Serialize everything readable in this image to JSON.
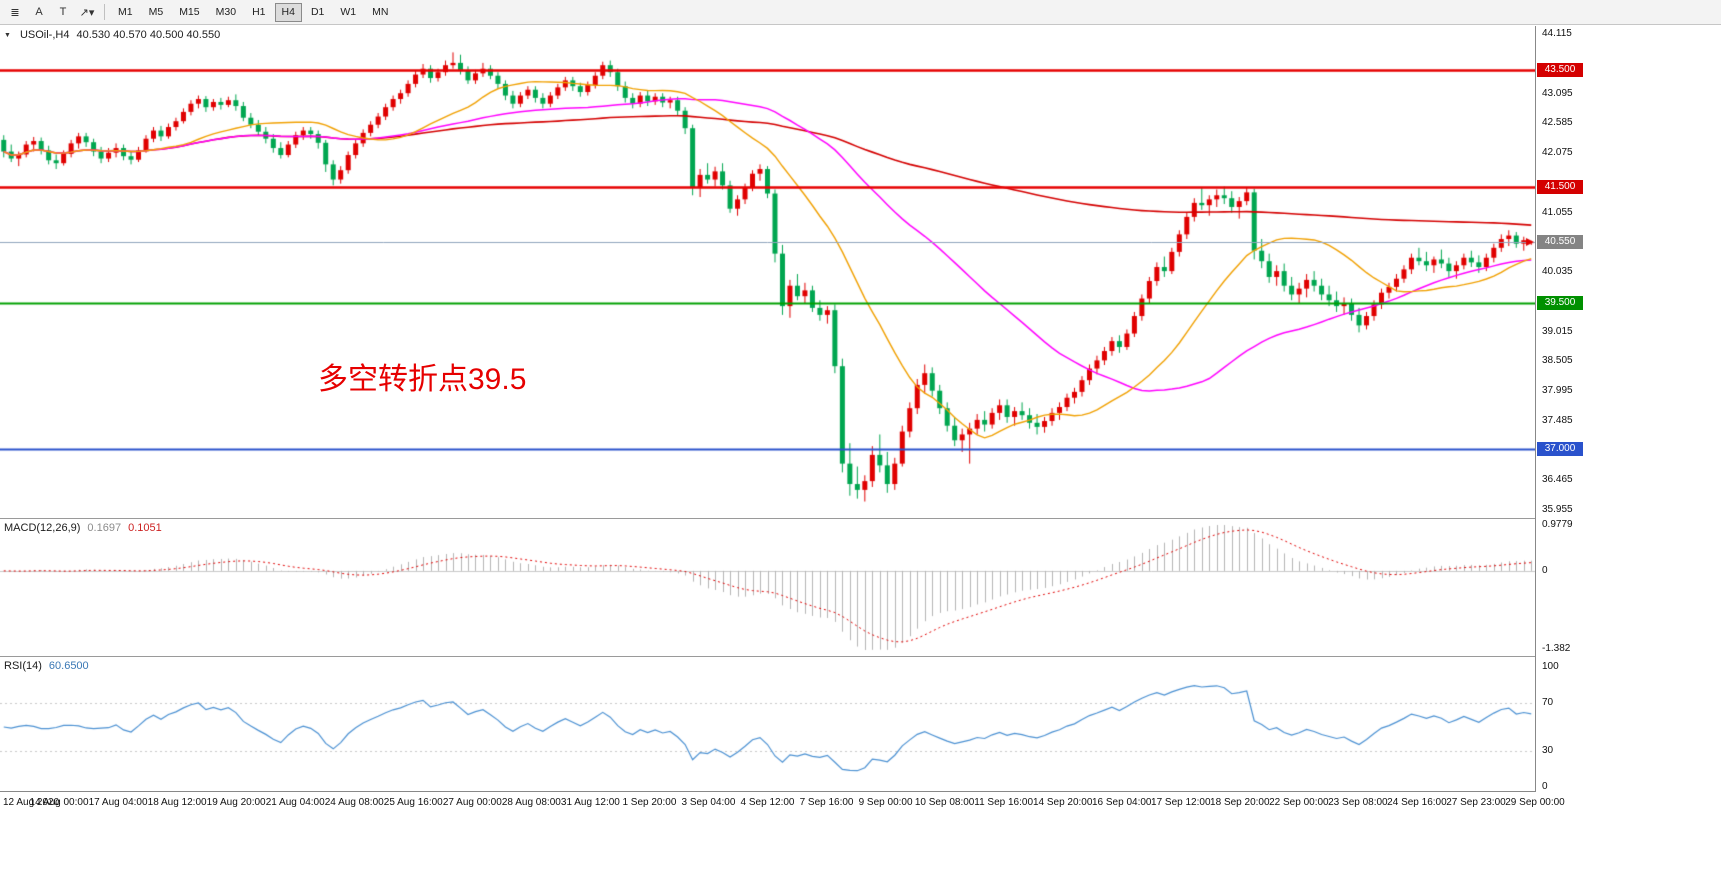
{
  "toolbar": {
    "tools": [
      {
        "name": "chart-windows-tool",
        "glyph": "≣"
      },
      {
        "name": "text-annotation-tool",
        "glyph": "A"
      },
      {
        "name": "text-label-tool",
        "glyph": "T"
      },
      {
        "name": "drawing-tools",
        "glyph": "↗▾"
      }
    ],
    "timeframes": [
      "M1",
      "M5",
      "M15",
      "M30",
      "H1",
      "H4",
      "D1",
      "W1",
      "MN"
    ],
    "active_timeframe": "H4"
  },
  "main_header": {
    "collapse_icon": "▼",
    "title": "USOil-,H4",
    "ohlc": "40.530 40.570 40.500 40.550"
  },
  "macd_header": {
    "title": "MACD(12,26,9)",
    "main": "0.1697",
    "signal": "0.1051"
  },
  "rsi_header": {
    "title": "RSI(14)",
    "value": "60.6500"
  },
  "annotation": {
    "text": "多空转折点39.5",
    "color": "#e60000"
  },
  "chart_data": {
    "type": "candlestick",
    "symbol": "USOil-",
    "timeframe": "H4",
    "ohlc_display": {
      "open": "40.530",
      "high": "40.570",
      "low": "40.500",
      "close": "40.550"
    },
    "ylim": [
      35.955,
      44.115
    ],
    "price_ticks": [
      44.115,
      43.095,
      42.585,
      42.075,
      41.055,
      40.035,
      39.015,
      38.505,
      37.995,
      37.485,
      36.465,
      35.955
    ],
    "time_labels": [
      "12 Aug 2020",
      "14 Aug 00:00",
      "17 Aug 04:00",
      "18 Aug 12:00",
      "19 Aug 20:00",
      "21 Aug 04:00",
      "24 Aug 08:00",
      "25 Aug 16:00",
      "27 Aug 00:00",
      "28 Aug 08:00",
      "31 Aug 12:00",
      "1 Sep 20:00",
      "3 Sep 04:00",
      "4 Sep 12:00",
      "7 Sep 16:00",
      "9 Sep 00:00",
      "10 Sep 08:00",
      "11 Sep 16:00",
      "14 Sep 20:00",
      "16 Sep 04:00",
      "17 Sep 12:00",
      "18 Sep 20:00",
      "22 Sep 00:00",
      "23 Sep 08:00",
      "24 Sep 16:00",
      "27 Sep 23:00",
      "29 Sep 00:00"
    ],
    "hlines": [
      {
        "price": 43.5,
        "label": "43.500",
        "color": "#e60000",
        "width": 2.4,
        "badge_bg": "#d40000"
      },
      {
        "price": 41.5,
        "label": "41.500",
        "color": "#e60000",
        "width": 2.4,
        "badge_bg": "#d40000"
      },
      {
        "price": 40.55,
        "label": "40.550",
        "color": "#8fa4bc",
        "width": 1.0,
        "badge_bg": "#848484"
      },
      {
        "price": 39.5,
        "label": "39.500",
        "color": "#00a000",
        "width": 1.8,
        "badge_bg": "#009000"
      },
      {
        "price": 37.0,
        "label": "37.000",
        "color": "#2a52cc",
        "width": 2.2,
        "badge_bg": "#2a52cc"
      }
    ],
    "current_price": 40.55,
    "candle_colors": {
      "up": "#e00000",
      "down": "#00a650"
    },
    "moving_averages": [
      {
        "period": 200,
        "color": "#d40000",
        "width": 1.6
      },
      {
        "period": 50,
        "color": "#ff00ff",
        "width": 1.5
      },
      {
        "period": 20,
        "color": "#f0a000",
        "width": 1.4
      }
    ],
    "macd": {
      "fast": 12,
      "slow": 26,
      "signal": 9,
      "hist_color": "#b4b4b4",
      "signal_color": "#e00000",
      "axis_labels": [
        "0.9779",
        "0",
        "-1.382"
      ]
    },
    "rsi": {
      "period": 14,
      "color": "#4a90d2",
      "levels": [
        70,
        30
      ],
      "axis_labels": [
        {
          "value": 100,
          "label": "100"
        },
        {
          "value": 70,
          "label": "70"
        },
        {
          "value": 30,
          "label": "30"
        },
        {
          "value": 0,
          "label": "0"
        }
      ]
    },
    "candles": [
      [
        42.3,
        42.38,
        42.0,
        42.1
      ],
      [
        42.1,
        42.22,
        41.92,
        41.98
      ],
      [
        41.98,
        42.1,
        41.85,
        42.05
      ],
      [
        42.05,
        42.28,
        42.0,
        42.22
      ],
      [
        42.22,
        42.35,
        42.1,
        42.28
      ],
      [
        42.28,
        42.34,
        42.05,
        42.12
      ],
      [
        42.12,
        42.2,
        41.88,
        41.95
      ],
      [
        41.95,
        42.05,
        41.8,
        41.9
      ],
      [
        41.9,
        42.12,
        41.86,
        42.06
      ],
      [
        42.06,
        42.3,
        42.0,
        42.24
      ],
      [
        42.24,
        42.42,
        42.15,
        42.36
      ],
      [
        42.36,
        42.42,
        42.18,
        42.26
      ],
      [
        42.26,
        42.32,
        42.02,
        42.1
      ],
      [
        42.1,
        42.18,
        41.9,
        41.98
      ],
      [
        41.98,
        42.16,
        41.92,
        42.08
      ],
      [
        42.08,
        42.24,
        42.0,
        42.16
      ],
      [
        42.16,
        42.22,
        41.95,
        42.02
      ],
      [
        42.02,
        42.1,
        41.88,
        41.96
      ],
      [
        41.96,
        42.18,
        41.92,
        42.12
      ],
      [
        42.12,
        42.38,
        42.08,
        42.32
      ],
      [
        42.32,
        42.52,
        42.26,
        42.46
      ],
      [
        42.46,
        42.54,
        42.28,
        42.36
      ],
      [
        42.36,
        42.58,
        42.32,
        42.52
      ],
      [
        42.52,
        42.68,
        42.46,
        42.62
      ],
      [
        42.62,
        42.84,
        42.58,
        42.78
      ],
      [
        42.78,
        42.98,
        42.72,
        42.92
      ],
      [
        42.92,
        43.06,
        42.84,
        43.0
      ],
      [
        43.0,
        43.05,
        42.78,
        42.86
      ],
      [
        42.86,
        43.0,
        42.8,
        42.95
      ],
      [
        42.95,
        43.02,
        42.82,
        42.9
      ],
      [
        42.9,
        43.04,
        42.86,
        42.98
      ],
      [
        42.98,
        43.08,
        42.8,
        42.88
      ],
      [
        42.88,
        42.95,
        42.62,
        42.68
      ],
      [
        42.68,
        42.76,
        42.5,
        42.56
      ],
      [
        42.56,
        42.64,
        42.38,
        42.44
      ],
      [
        42.44,
        42.52,
        42.24,
        42.32
      ],
      [
        42.32,
        42.4,
        42.08,
        42.16
      ],
      [
        42.16,
        42.26,
        41.98,
        42.04
      ],
      [
        42.04,
        42.28,
        42.0,
        42.22
      ],
      [
        42.22,
        42.44,
        42.16,
        42.38
      ],
      [
        42.38,
        42.52,
        42.3,
        42.46
      ],
      [
        42.46,
        42.52,
        42.32,
        42.4
      ],
      [
        42.4,
        42.46,
        42.15,
        42.25
      ],
      [
        42.25,
        42.3,
        41.75,
        41.88
      ],
      [
        41.88,
        41.95,
        41.52,
        41.62
      ],
      [
        41.62,
        41.85,
        41.55,
        41.78
      ],
      [
        41.78,
        42.1,
        41.72,
        42.04
      ],
      [
        42.04,
        42.3,
        41.98,
        42.24
      ],
      [
        42.24,
        42.48,
        42.18,
        42.42
      ],
      [
        42.42,
        42.62,
        42.36,
        42.56
      ],
      [
        42.56,
        42.76,
        42.5,
        42.7
      ],
      [
        42.7,
        42.92,
        42.64,
        42.86
      ],
      [
        42.86,
        43.06,
        42.8,
        43.0
      ],
      [
        43.0,
        43.16,
        42.92,
        43.1
      ],
      [
        43.1,
        43.32,
        43.04,
        43.26
      ],
      [
        43.26,
        43.48,
        43.2,
        43.42
      ],
      [
        43.42,
        43.6,
        43.36,
        43.52
      ],
      [
        43.52,
        43.58,
        43.28,
        43.36
      ],
      [
        43.36,
        43.52,
        43.3,
        43.46
      ],
      [
        43.46,
        43.66,
        43.4,
        43.58
      ],
      [
        43.58,
        43.8,
        43.52,
        43.62
      ],
      [
        43.62,
        43.76,
        43.42,
        43.48
      ],
      [
        43.48,
        43.56,
        43.26,
        43.32
      ],
      [
        43.32,
        43.5,
        43.26,
        43.44
      ],
      [
        43.44,
        43.62,
        43.38,
        43.52
      ],
      [
        43.52,
        43.58,
        43.34,
        43.4
      ],
      [
        43.4,
        43.46,
        43.18,
        43.26
      ],
      [
        43.26,
        43.32,
        42.98,
        43.06
      ],
      [
        43.06,
        43.14,
        42.84,
        42.92
      ],
      [
        42.92,
        43.12,
        42.86,
        43.06
      ],
      [
        43.06,
        43.22,
        43.0,
        43.16
      ],
      [
        43.16,
        43.22,
        42.94,
        43.02
      ],
      [
        43.02,
        43.1,
        42.84,
        42.92
      ],
      [
        42.92,
        43.12,
        42.86,
        43.06
      ],
      [
        43.06,
        43.26,
        43.0,
        43.2
      ],
      [
        43.2,
        43.38,
        43.14,
        43.32
      ],
      [
        43.32,
        43.38,
        43.14,
        43.22
      ],
      [
        43.22,
        43.28,
        43.04,
        43.12
      ],
      [
        43.12,
        43.3,
        43.06,
        43.24
      ],
      [
        43.24,
        43.46,
        43.18,
        43.4
      ],
      [
        43.4,
        43.64,
        43.34,
        43.58
      ],
      [
        43.58,
        43.66,
        43.38,
        43.46
      ],
      [
        43.46,
        43.52,
        43.14,
        43.22
      ],
      [
        43.22,
        43.3,
        42.94,
        43.02
      ],
      [
        43.02,
        43.1,
        42.84,
        42.92
      ],
      [
        42.92,
        43.12,
        42.86,
        43.06
      ],
      [
        43.06,
        43.14,
        42.88,
        42.96
      ],
      [
        42.96,
        43.1,
        42.9,
        43.04
      ],
      [
        43.04,
        43.1,
        42.86,
        42.94
      ],
      [
        42.94,
        43.04,
        42.84,
        42.98
      ],
      [
        42.98,
        43.04,
        42.72,
        42.8
      ],
      [
        42.8,
        42.86,
        42.4,
        42.5
      ],
      [
        42.5,
        42.56,
        41.35,
        41.48
      ],
      [
        41.48,
        41.8,
        41.32,
        41.7
      ],
      [
        41.7,
        41.9,
        41.55,
        41.62
      ],
      [
        41.62,
        41.84,
        41.5,
        41.76
      ],
      [
        41.76,
        41.9,
        41.45,
        41.52
      ],
      [
        41.52,
        41.6,
        41.05,
        41.12
      ],
      [
        41.12,
        41.35,
        41.0,
        41.28
      ],
      [
        41.28,
        41.55,
        41.2,
        41.48
      ],
      [
        41.48,
        41.78,
        41.42,
        41.72
      ],
      [
        41.72,
        41.88,
        41.6,
        41.8
      ],
      [
        41.8,
        41.85,
        41.3,
        41.38
      ],
      [
        41.38,
        41.45,
        40.2,
        40.35
      ],
      [
        40.35,
        40.5,
        39.3,
        39.45
      ],
      [
        39.45,
        39.9,
        39.25,
        39.8
      ],
      [
        39.8,
        40.0,
        39.55,
        39.62
      ],
      [
        39.62,
        39.85,
        39.5,
        39.72
      ],
      [
        39.72,
        39.8,
        39.35,
        39.42
      ],
      [
        39.42,
        39.55,
        39.2,
        39.3
      ],
      [
        39.3,
        39.45,
        39.15,
        39.38
      ],
      [
        39.38,
        39.48,
        38.3,
        38.42
      ],
      [
        38.42,
        38.55,
        36.6,
        36.75
      ],
      [
        36.75,
        37.1,
        36.2,
        36.4
      ],
      [
        36.4,
        36.7,
        36.15,
        36.3
      ],
      [
        36.3,
        36.55,
        36.1,
        36.45
      ],
      [
        36.45,
        37.05,
        36.35,
        36.9
      ],
      [
        36.9,
        37.25,
        36.6,
        36.72
      ],
      [
        36.72,
        36.95,
        36.25,
        36.4
      ],
      [
        36.4,
        36.85,
        36.3,
        36.75
      ],
      [
        36.75,
        37.4,
        36.7,
        37.3
      ],
      [
        37.3,
        37.8,
        37.2,
        37.7
      ],
      [
        37.7,
        38.2,
        37.6,
        38.1
      ],
      [
        38.1,
        38.45,
        37.95,
        38.3
      ],
      [
        38.3,
        38.4,
        37.9,
        38.0
      ],
      [
        38.0,
        38.1,
        37.6,
        37.7
      ],
      [
        37.7,
        37.8,
        37.3,
        37.4
      ],
      [
        37.4,
        37.55,
        37.05,
        37.15
      ],
      [
        37.15,
        37.35,
        36.95,
        37.25
      ],
      [
        37.25,
        37.45,
        36.75,
        37.35
      ],
      [
        37.35,
        37.6,
        37.25,
        37.5
      ],
      [
        37.5,
        37.65,
        37.3,
        37.42
      ],
      [
        37.42,
        37.7,
        37.35,
        37.62
      ],
      [
        37.62,
        37.85,
        37.5,
        37.75
      ],
      [
        37.75,
        37.85,
        37.45,
        37.55
      ],
      [
        37.55,
        37.72,
        37.4,
        37.65
      ],
      [
        37.65,
        37.8,
        37.5,
        37.58
      ],
      [
        37.58,
        37.7,
        37.35,
        37.45
      ],
      [
        37.45,
        37.6,
        37.25,
        37.38
      ],
      [
        37.38,
        37.55,
        37.28,
        37.48
      ],
      [
        37.48,
        37.7,
        37.4,
        37.62
      ],
      [
        37.62,
        37.8,
        37.5,
        37.72
      ],
      [
        37.72,
        37.95,
        37.65,
        37.88
      ],
      [
        37.88,
        38.05,
        37.78,
        37.98
      ],
      [
        37.98,
        38.25,
        37.9,
        38.18
      ],
      [
        38.18,
        38.45,
        38.1,
        38.38
      ],
      [
        38.38,
        38.6,
        38.28,
        38.52
      ],
      [
        38.52,
        38.75,
        38.44,
        38.68
      ],
      [
        38.68,
        38.92,
        38.6,
        38.85
      ],
      [
        38.85,
        38.95,
        38.65,
        38.75
      ],
      [
        38.75,
        39.05,
        38.7,
        38.98
      ],
      [
        38.98,
        39.35,
        38.92,
        39.28
      ],
      [
        39.28,
        39.65,
        39.2,
        39.58
      ],
      [
        39.58,
        39.95,
        39.5,
        39.88
      ],
      [
        39.88,
        40.2,
        39.8,
        40.12
      ],
      [
        40.12,
        40.3,
        39.95,
        40.05
      ],
      [
        40.05,
        40.45,
        40.0,
        40.38
      ],
      [
        40.38,
        40.75,
        40.3,
        40.68
      ],
      [
        40.68,
        41.05,
        40.6,
        40.98
      ],
      [
        40.98,
        41.3,
        40.9,
        41.22
      ],
      [
        41.22,
        41.48,
        41.1,
        41.18
      ],
      [
        41.18,
        41.35,
        41.0,
        41.28
      ],
      [
        41.28,
        41.45,
        41.15,
        41.35
      ],
      [
        41.35,
        41.5,
        41.2,
        41.3
      ],
      [
        41.3,
        41.42,
        41.05,
        41.15
      ],
      [
        41.15,
        41.32,
        40.95,
        41.25
      ],
      [
        41.25,
        41.48,
        41.18,
        41.4
      ],
      [
        41.4,
        41.46,
        40.25,
        40.4
      ],
      [
        40.4,
        40.6,
        40.1,
        40.22
      ],
      [
        40.22,
        40.35,
        39.85,
        39.95
      ],
      [
        39.95,
        40.15,
        39.8,
        40.05
      ],
      [
        40.05,
        40.18,
        39.7,
        39.8
      ],
      [
        39.8,
        39.95,
        39.55,
        39.65
      ],
      [
        39.65,
        39.85,
        39.5,
        39.75
      ],
      [
        39.75,
        40.0,
        39.6,
        39.9
      ],
      [
        39.9,
        40.05,
        39.7,
        39.8
      ],
      [
        39.8,
        39.92,
        39.55,
        39.65
      ],
      [
        39.65,
        39.8,
        39.45,
        39.55
      ],
      [
        39.55,
        39.7,
        39.35,
        39.45
      ],
      [
        39.45,
        39.6,
        39.3,
        39.5
      ],
      [
        39.5,
        39.58,
        39.2,
        39.3
      ],
      [
        39.3,
        39.42,
        39.0,
        39.12
      ],
      [
        39.12,
        39.35,
        39.05,
        39.28
      ],
      [
        39.28,
        39.55,
        39.2,
        39.48
      ],
      [
        39.48,
        39.75,
        39.4,
        39.68
      ],
      [
        39.68,
        39.85,
        39.58,
        39.78
      ],
      [
        39.78,
        40.0,
        39.7,
        39.92
      ],
      [
        39.92,
        40.15,
        39.85,
        40.08
      ],
      [
        40.08,
        40.35,
        40.0,
        40.28
      ],
      [
        40.28,
        40.45,
        40.15,
        40.22
      ],
      [
        40.22,
        40.38,
        40.05,
        40.15
      ],
      [
        40.15,
        40.3,
        40.02,
        40.25
      ],
      [
        40.25,
        40.42,
        40.1,
        40.18
      ],
      [
        40.18,
        40.28,
        39.95,
        40.05
      ],
      [
        40.05,
        40.22,
        39.92,
        40.15
      ],
      [
        40.15,
        40.35,
        40.08,
        40.28
      ],
      [
        40.28,
        40.4,
        40.12,
        40.2
      ],
      [
        40.2,
        40.32,
        40.02,
        40.12
      ],
      [
        40.12,
        40.35,
        40.05,
        40.28
      ],
      [
        40.28,
        40.52,
        40.2,
        40.45
      ],
      [
        40.45,
        40.68,
        40.38,
        40.6
      ],
      [
        40.6,
        40.75,
        40.48,
        40.66
      ],
      [
        40.66,
        40.72,
        40.45,
        40.52
      ],
      [
        40.52,
        40.64,
        40.4,
        40.58
      ],
      [
        40.53,
        40.57,
        40.5,
        40.55
      ]
    ]
  }
}
